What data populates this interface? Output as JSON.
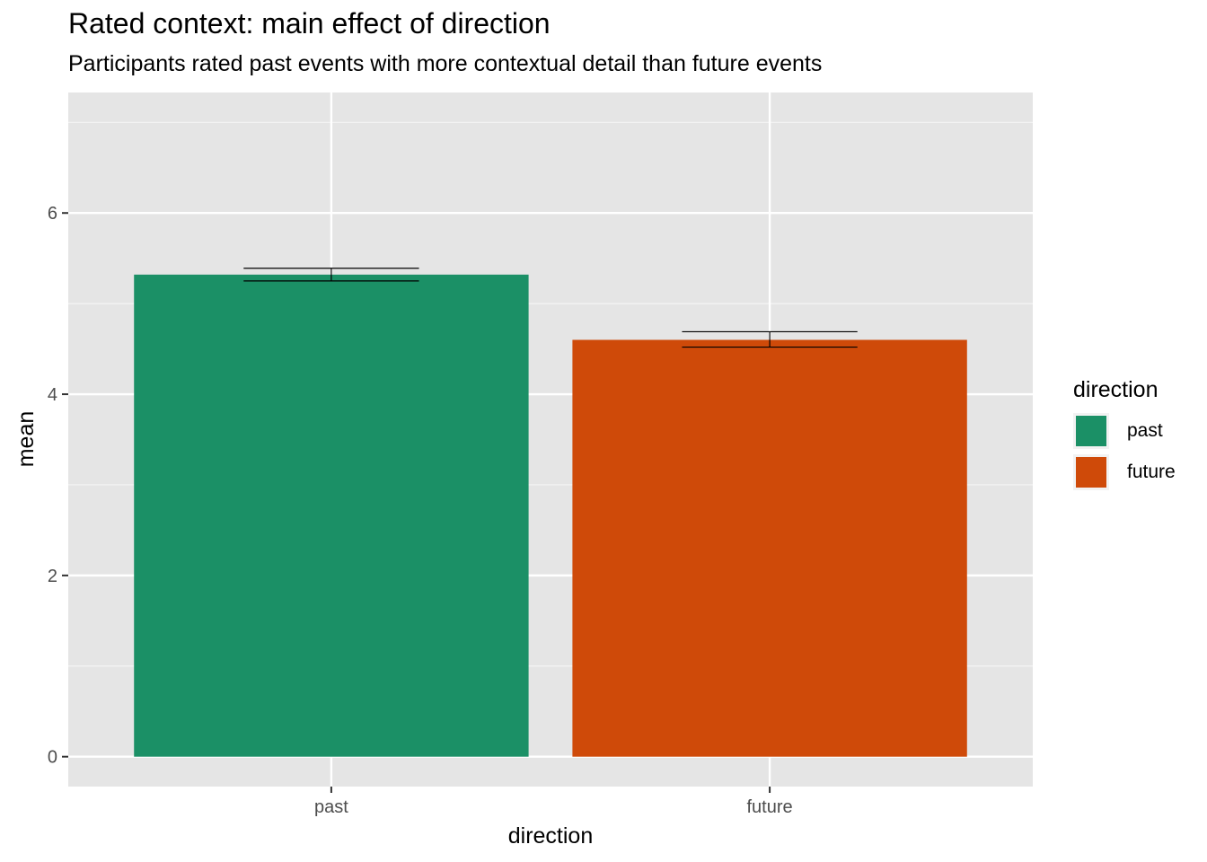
{
  "chart_data": {
    "type": "bar",
    "title": "Rated context: main effect of direction",
    "subtitle": "Participants rated past events with more contextual detail than future events",
    "xlabel": "direction",
    "ylabel": "mean",
    "categories": [
      "past",
      "future"
    ],
    "values": [
      5.32,
      4.6
    ],
    "error_bars": [
      {
        "low": 5.25,
        "high": 5.39
      },
      {
        "low": 4.52,
        "high": 4.69
      }
    ],
    "colors": [
      "#1b9066",
      "#cf4a09"
    ],
    "ylim": [
      -0.33,
      7.33
    ],
    "yticks": [
      0,
      2,
      4,
      6
    ],
    "grid": true,
    "legend": {
      "title": "direction",
      "position": "right",
      "items": [
        "past",
        "future"
      ]
    }
  }
}
